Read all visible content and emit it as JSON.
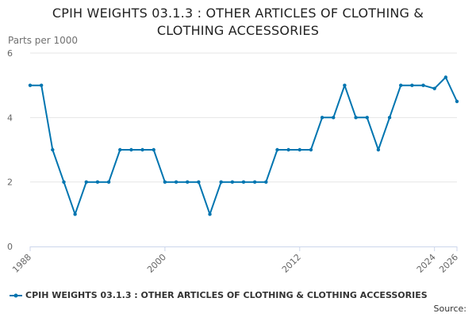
{
  "colors": {
    "series": "#0075b0",
    "grid": "#e6e6e6",
    "axis": "#ccd6eb",
    "tick_text": "#666666"
  },
  "chart_data": {
    "type": "line",
    "title_lines": [
      "CPIH WEIGHTS 03.1.3 : OTHER ARTICLES OF CLOTHING &",
      "CLOTHING ACCESSORIES"
    ],
    "ylabel": "Parts per 1000",
    "xlabel": "",
    "ylim": [
      0,
      6
    ],
    "y_ticks": [
      0,
      2,
      4,
      6
    ],
    "xlim": [
      1988,
      2026
    ],
    "x_ticks": [
      1988,
      2000,
      2012,
      2024,
      2026
    ],
    "grid": true,
    "legend_position": "bottom-left",
    "series": [
      {
        "name": "CPIH WEIGHTS 03.1.3 : OTHER ARTICLES OF CLOTHING & CLOTHING ACCESSORIES",
        "x": [
          1988,
          1989,
          1990,
          1991,
          1992,
          1993,
          1994,
          1995,
          1996,
          1997,
          1998,
          1999,
          2000,
          2001,
          2002,
          2003,
          2004,
          2005,
          2006,
          2007,
          2008,
          2009,
          2010,
          2011,
          2012,
          2013,
          2014,
          2015,
          2016,
          2017,
          2018,
          2019,
          2020,
          2021,
          2022,
          2023,
          2024,
          2025,
          2026
        ],
        "values": [
          5,
          5,
          3,
          2,
          1,
          2,
          2,
          2,
          3,
          3,
          3,
          3,
          2,
          2,
          2,
          2,
          1,
          2,
          2,
          2,
          2,
          2,
          3,
          3,
          3,
          3,
          4,
          4,
          5,
          4,
          4,
          3,
          4,
          5,
          5,
          5,
          4.9,
          5.25,
          4.5
        ]
      }
    ]
  },
  "source_label": "Source:"
}
